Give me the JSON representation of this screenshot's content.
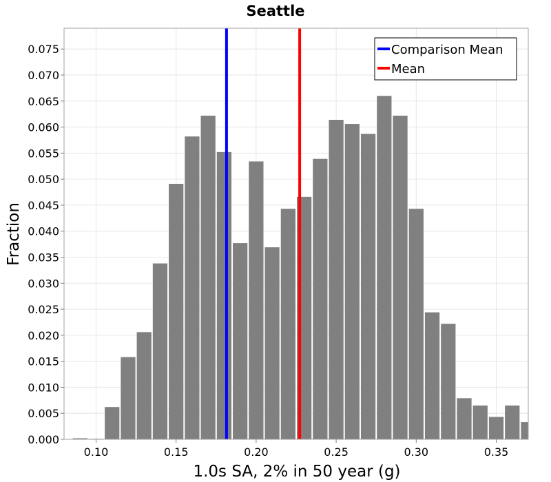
{
  "chart_data": {
    "type": "bar",
    "title": "Seattle",
    "xlabel": "1.0s SA, 2% in 50 year (g)",
    "ylabel": "Fraction",
    "xlim": [
      0.08,
      0.37
    ],
    "ylim": [
      0,
      0.079
    ],
    "grid": true,
    "legend_position": "top-right",
    "bin_width": 0.01,
    "xticks": [
      0.1,
      0.15,
      0.2,
      0.25,
      0.3,
      0.35
    ],
    "xtick_labels": [
      "0.10",
      "0.15",
      "0.20",
      "0.25",
      "0.30",
      "0.35"
    ],
    "yticks": [
      0.0,
      0.005,
      0.01,
      0.015,
      0.02,
      0.025,
      0.03,
      0.035,
      0.04,
      0.045,
      0.05,
      0.055,
      0.06,
      0.065,
      0.07,
      0.075
    ],
    "ytick_labels": [
      "0.000",
      "0.005",
      "0.010",
      "0.015",
      "0.020",
      "0.025",
      "0.030",
      "0.035",
      "0.040",
      "0.045",
      "0.050",
      "0.055",
      "0.060",
      "0.065",
      "0.070",
      "0.075"
    ],
    "bins": [
      {
        "x": 0.09,
        "value": 0.0002
      },
      {
        "x": 0.1,
        "value": 0.0001
      },
      {
        "x": 0.11,
        "value": 0.0062
      },
      {
        "x": 0.12,
        "value": 0.0158
      },
      {
        "x": 0.13,
        "value": 0.0206
      },
      {
        "x": 0.14,
        "value": 0.0338
      },
      {
        "x": 0.15,
        "value": 0.0491
      },
      {
        "x": 0.16,
        "value": 0.0582
      },
      {
        "x": 0.17,
        "value": 0.0622
      },
      {
        "x": 0.18,
        "value": 0.0552
      },
      {
        "x": 0.19,
        "value": 0.0377
      },
      {
        "x": 0.2,
        "value": 0.0534
      },
      {
        "x": 0.21,
        "value": 0.0369
      },
      {
        "x": 0.22,
        "value": 0.0443
      },
      {
        "x": 0.23,
        "value": 0.0466
      },
      {
        "x": 0.24,
        "value": 0.0539
      },
      {
        "x": 0.25,
        "value": 0.0614
      },
      {
        "x": 0.26,
        "value": 0.0606
      },
      {
        "x": 0.27,
        "value": 0.0587
      },
      {
        "x": 0.28,
        "value": 0.066
      },
      {
        "x": 0.29,
        "value": 0.0622
      },
      {
        "x": 0.3,
        "value": 0.0443
      },
      {
        "x": 0.31,
        "value": 0.0244
      },
      {
        "x": 0.32,
        "value": 0.0222
      },
      {
        "x": 0.33,
        "value": 0.0079
      },
      {
        "x": 0.34,
        "value": 0.0065
      },
      {
        "x": 0.35,
        "value": 0.0043
      },
      {
        "x": 0.36,
        "value": 0.0065
      },
      {
        "x": 0.37,
        "value": 0.0033
      }
    ],
    "bar_color": "#808080",
    "reference_lines": [
      {
        "name": "Comparison Mean",
        "x": 0.1815,
        "color": "#0000ff"
      },
      {
        "name": "Mean",
        "x": 0.2272,
        "color": "#ff0000"
      }
    ]
  }
}
